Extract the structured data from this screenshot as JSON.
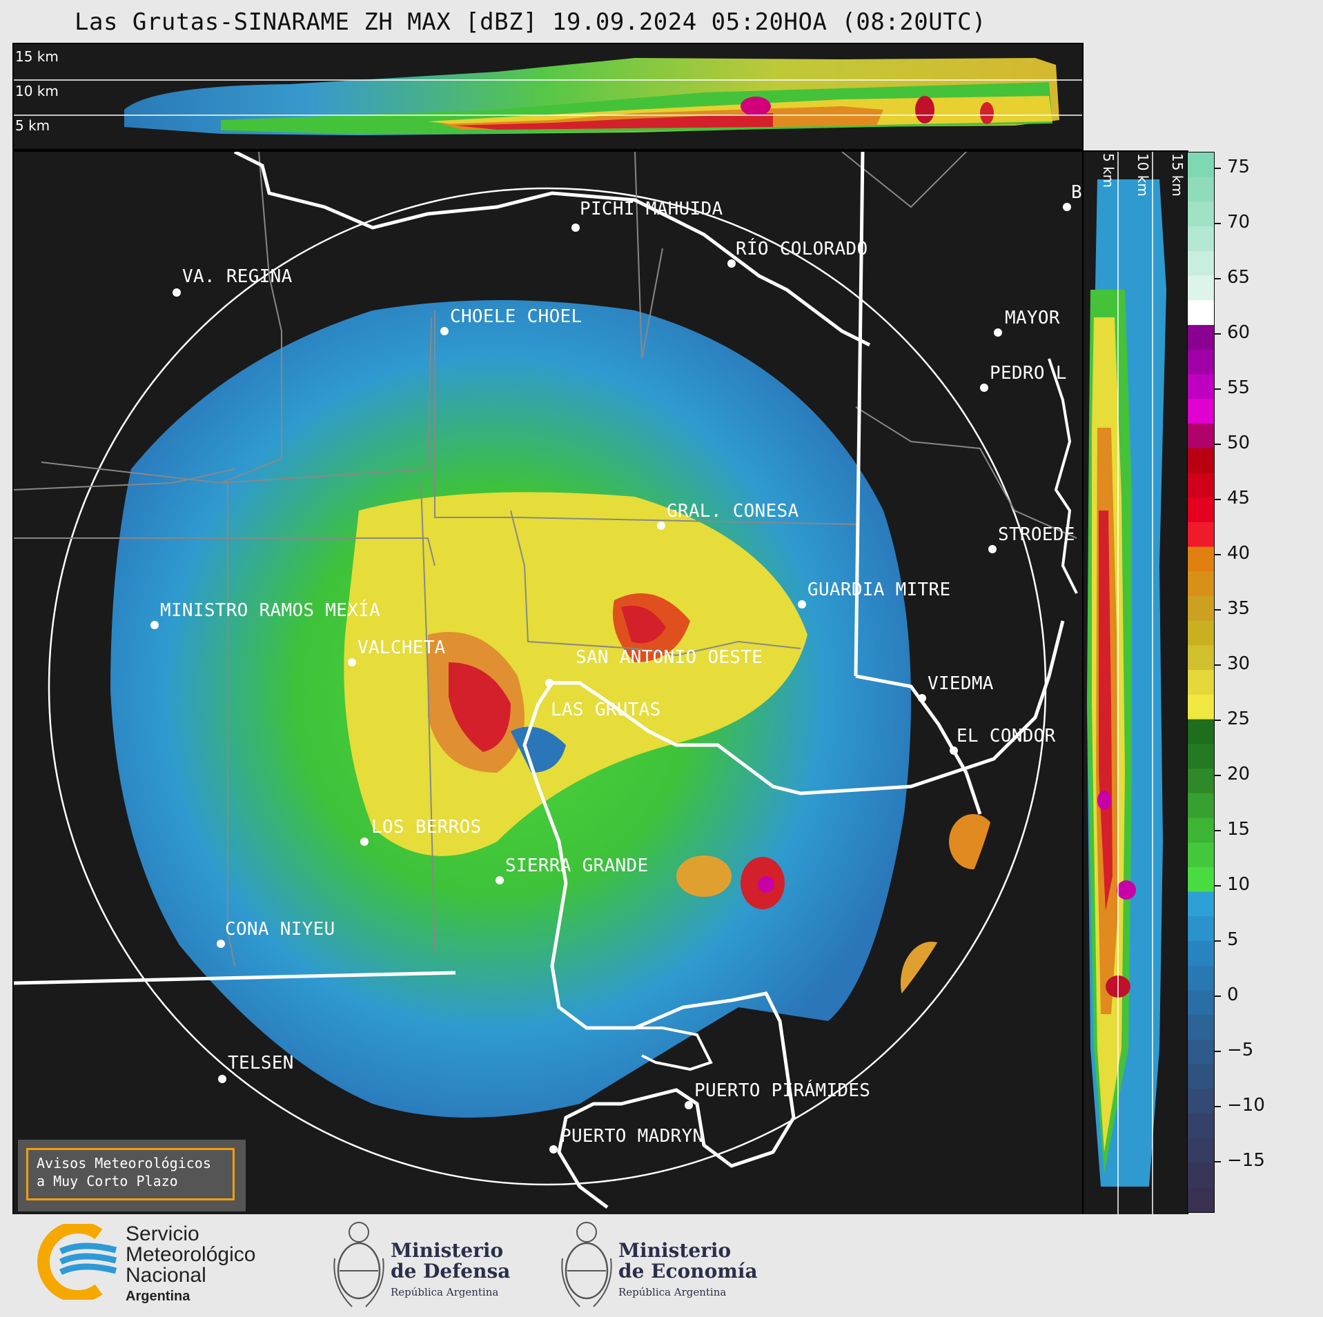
{
  "title": "Las Grutas-SINARAME ZH MAX [dBZ] 19.09.2024 05:20HOA (08:20UTC)",
  "cross_section": {
    "top_labels": [
      "15 km",
      "10 km",
      "5 km"
    ],
    "right_labels": [
      "5 km",
      "10 km",
      "15 km"
    ]
  },
  "colorbar": {
    "ticks": [
      "75",
      "70",
      "65",
      "60",
      "55",
      "50",
      "45",
      "40",
      "35",
      "30",
      "25",
      "20",
      "15",
      "10",
      "5",
      "0",
      "−5",
      "−10",
      "−15"
    ]
  },
  "places": [
    {
      "name": "PICHI MAHUIDA"
    },
    {
      "name": "RÍO COLORADO"
    },
    {
      "name": "VA. REGINA"
    },
    {
      "name": "CHOELE CHOEL"
    },
    {
      "name": "MAYOR"
    },
    {
      "name": "PEDRO L"
    },
    {
      "name": "B"
    },
    {
      "name": "GRAL. CONESA"
    },
    {
      "name": "STROEDE"
    },
    {
      "name": "GUARDIA MITRE"
    },
    {
      "name": "MINISTRO RAMOS MEXÍA"
    },
    {
      "name": "VALCHETA"
    },
    {
      "name": "SAN ANTONIO OESTE"
    },
    {
      "name": "LAS GRUTAS"
    },
    {
      "name": "VIEDMA"
    },
    {
      "name": "EL CONDOR"
    },
    {
      "name": "LOS BERROS"
    },
    {
      "name": "SIERRA GRANDE"
    },
    {
      "name": "CONA NIYEU"
    },
    {
      "name": "TELSEN"
    },
    {
      "name": "PUERTO PIRÁMIDES"
    },
    {
      "name": "PUERTO MADRYN"
    }
  ],
  "notice": {
    "line1": "Avisos Meteorológicos",
    "line2": "a Muy Corto Plazo"
  },
  "footer": {
    "smn_line1": "Servicio",
    "smn_line2": "Meteorológico",
    "smn_line3": "Nacional",
    "smn_line4": "Argentina",
    "defensa_line1": "Ministerio",
    "defensa_line2": "de Defensa",
    "defensa_sub": "República Argentina",
    "economia_line1": "Ministerio",
    "economia_line2": "de Economía",
    "economia_sub": "República Argentina"
  }
}
